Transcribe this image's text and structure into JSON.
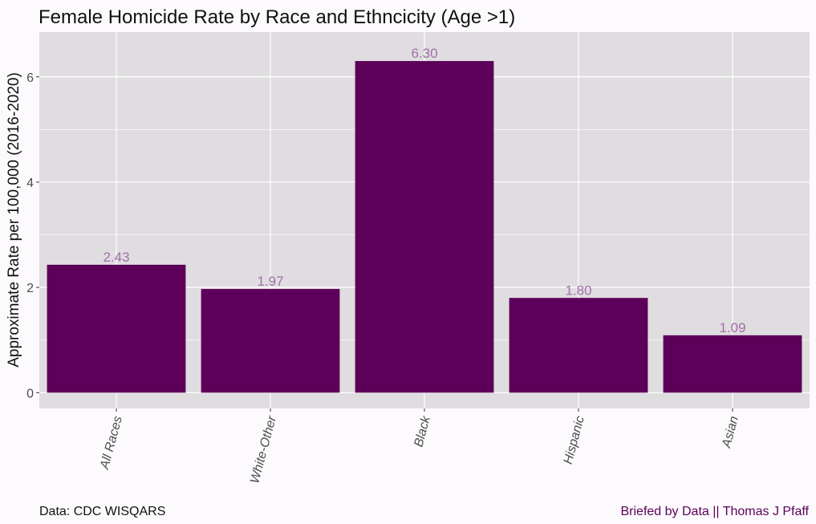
{
  "chart_data": {
    "type": "bar",
    "title": "Female Homicide Rate by Race and Ethncicity (Age >1)",
    "xlabel": "",
    "ylabel": "Approximate Rate per 100,000 (2016-2020)",
    "categories": [
      "All Races",
      "White-Other",
      "Black",
      "Hispanic",
      "Asian"
    ],
    "values": [
      2.43,
      1.97,
      6.3,
      1.8,
      1.09
    ],
    "data_labels": [
      "2.43",
      "1.97",
      "6.30",
      "1.80",
      "1.09"
    ],
    "ylim": [
      -0.3,
      6.85
    ],
    "yticks": [
      0,
      2,
      4,
      6
    ],
    "grid": true,
    "x_tick_rotation_deg": -75,
    "colors": {
      "bar": "#5c0059",
      "panel_background": "#e0dde0",
      "plot_background": "#fcfafd",
      "grid": "#ffffff",
      "data_label": "#a070a8",
      "credit_text": "#5c0059"
    }
  },
  "caption": {
    "source": "Data: CDC WISQARS",
    "credit": "Briefed by Data || Thomas J Pfaff"
  }
}
